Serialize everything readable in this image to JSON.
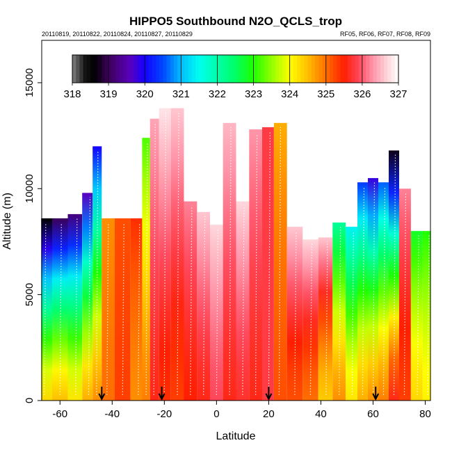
{
  "chart_data": {
    "type": "heatmap",
    "title": "HIPPO5 Southbound N2O_QCLS_trop",
    "subtitle_left": "20110819, 20110822, 20110824, 20110827, 20110829",
    "subtitle_right": "RF05, RF06, RF07, RF08, RF09",
    "xlabel": "Latitude",
    "ylabel": "Altitude (m)",
    "xlim": [
      -67,
      82
    ],
    "ylim": [
      0,
      17000
    ],
    "x_ticks": [
      -60,
      -40,
      -20,
      0,
      20,
      40,
      60,
      80
    ],
    "y_ticks": [
      0,
      5000,
      10000,
      15000
    ],
    "colorbar": {
      "min": 318,
      "max": 327,
      "tick_labels": [
        "318",
        "319",
        "320",
        "321",
        "322",
        "323",
        "324",
        "325",
        "326",
        "327"
      ]
    },
    "arrows_latitude": [
      -44,
      -21,
      20,
      61
    ],
    "columns": [
      {
        "lat": -66,
        "top": 8600,
        "base_value": 324.3,
        "top_value": 318.6
      },
      {
        "lat": -60,
        "top": 8600,
        "base_value": 324.5,
        "top_value": 319.0
      },
      {
        "lat": -54,
        "top": 8800,
        "base_value": 324.2,
        "top_value": 319.2
      },
      {
        "lat": -49,
        "top": 9800,
        "base_value": 324.6,
        "top_value": 319.6
      },
      {
        "lat": -46,
        "top": 12000,
        "base_value": 324.8,
        "top_value": 320.0
      },
      {
        "lat": -42,
        "top": 8600,
        "base_value": 325.0,
        "top_value": 324.8
      },
      {
        "lat": -36,
        "top": 8600,
        "base_value": 325.3,
        "top_value": 325.2
      },
      {
        "lat": -30,
        "top": 8600,
        "base_value": 324.8,
        "top_value": 325.4
      },
      {
        "lat": -27,
        "top": 12400,
        "base_value": 324.9,
        "top_value": 323.2
      },
      {
        "lat": -24,
        "top": 13300,
        "base_value": 325.6,
        "top_value": 326.4
      },
      {
        "lat": -20,
        "top": 13800,
        "base_value": 325.4,
        "top_value": 326.8
      },
      {
        "lat": -15,
        "top": 13800,
        "base_value": 325.3,
        "top_value": 326.6
      },
      {
        "lat": -10,
        "top": 9400,
        "base_value": 325.5,
        "top_value": 326.2
      },
      {
        "lat": -5,
        "top": 8900,
        "base_value": 325.6,
        "top_value": 326.6
      },
      {
        "lat": 0,
        "top": 8300,
        "base_value": 325.9,
        "top_value": 326.7
      },
      {
        "lat": 5,
        "top": 13100,
        "base_value": 325.6,
        "top_value": 326.5
      },
      {
        "lat": 10,
        "top": 9400,
        "base_value": 325.7,
        "top_value": 326.7
      },
      {
        "lat": 15,
        "top": 12800,
        "base_value": 325.6,
        "top_value": 326.3
      },
      {
        "lat": 20,
        "top": 12900,
        "base_value": 325.8,
        "top_value": 325.8
      },
      {
        "lat": 24,
        "top": 13100,
        "base_value": 325.2,
        "top_value": 324.6
      },
      {
        "lat": 30,
        "top": 8200,
        "base_value": 325.2,
        "top_value": 326.6
      },
      {
        "lat": 36,
        "top": 7600,
        "base_value": 325.0,
        "top_value": 326.7
      },
      {
        "lat": 42,
        "top": 7700,
        "base_value": 324.4,
        "top_value": 326.6
      },
      {
        "lat": 47,
        "top": 8400,
        "base_value": 324.8,
        "top_value": 322.1
      },
      {
        "lat": 52,
        "top": 8200,
        "base_value": 324.2,
        "top_value": 321.4
      },
      {
        "lat": 56,
        "top": 10300,
        "base_value": 324.6,
        "top_value": 320.4
      },
      {
        "lat": 60,
        "top": 10500,
        "base_value": 324.8,
        "top_value": 319.8
      },
      {
        "lat": 64,
        "top": 10300,
        "base_value": 324.9,
        "top_value": 320.6
      },
      {
        "lat": 68,
        "top": 11800,
        "base_value": 325.6,
        "top_value": 318.7
      },
      {
        "lat": 72,
        "top": 10000,
        "base_value": 325.3,
        "top_value": 326.2
      },
      {
        "lat": 77,
        "top": 8000,
        "base_value": 324.3,
        "top_value": 322.8
      },
      {
        "lat": 81,
        "top": 8000,
        "base_value": 324.1,
        "top_value": 323.0
      }
    ]
  }
}
